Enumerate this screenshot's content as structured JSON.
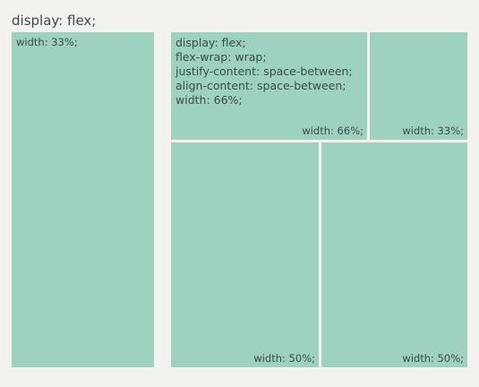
{
  "outer": {
    "title": "display: flex;"
  },
  "left_box": {
    "label": "width: 33%;"
  },
  "inner_container": {
    "properties": [
      "display: flex;",
      "flex-wrap: wrap;",
      "justify-content: space-between;",
      "align-content: space-between;",
      "width: 66%;"
    ]
  },
  "inner_items": [
    {
      "label": "width: 66%;"
    },
    {
      "label": "width: 33%;"
    },
    {
      "label": "width: 50%;"
    },
    {
      "label": "width: 50%;"
    }
  ],
  "colors": {
    "background": "#f2f2ee",
    "box_fill": "#9dd2c1",
    "text": "#3f4a48"
  }
}
